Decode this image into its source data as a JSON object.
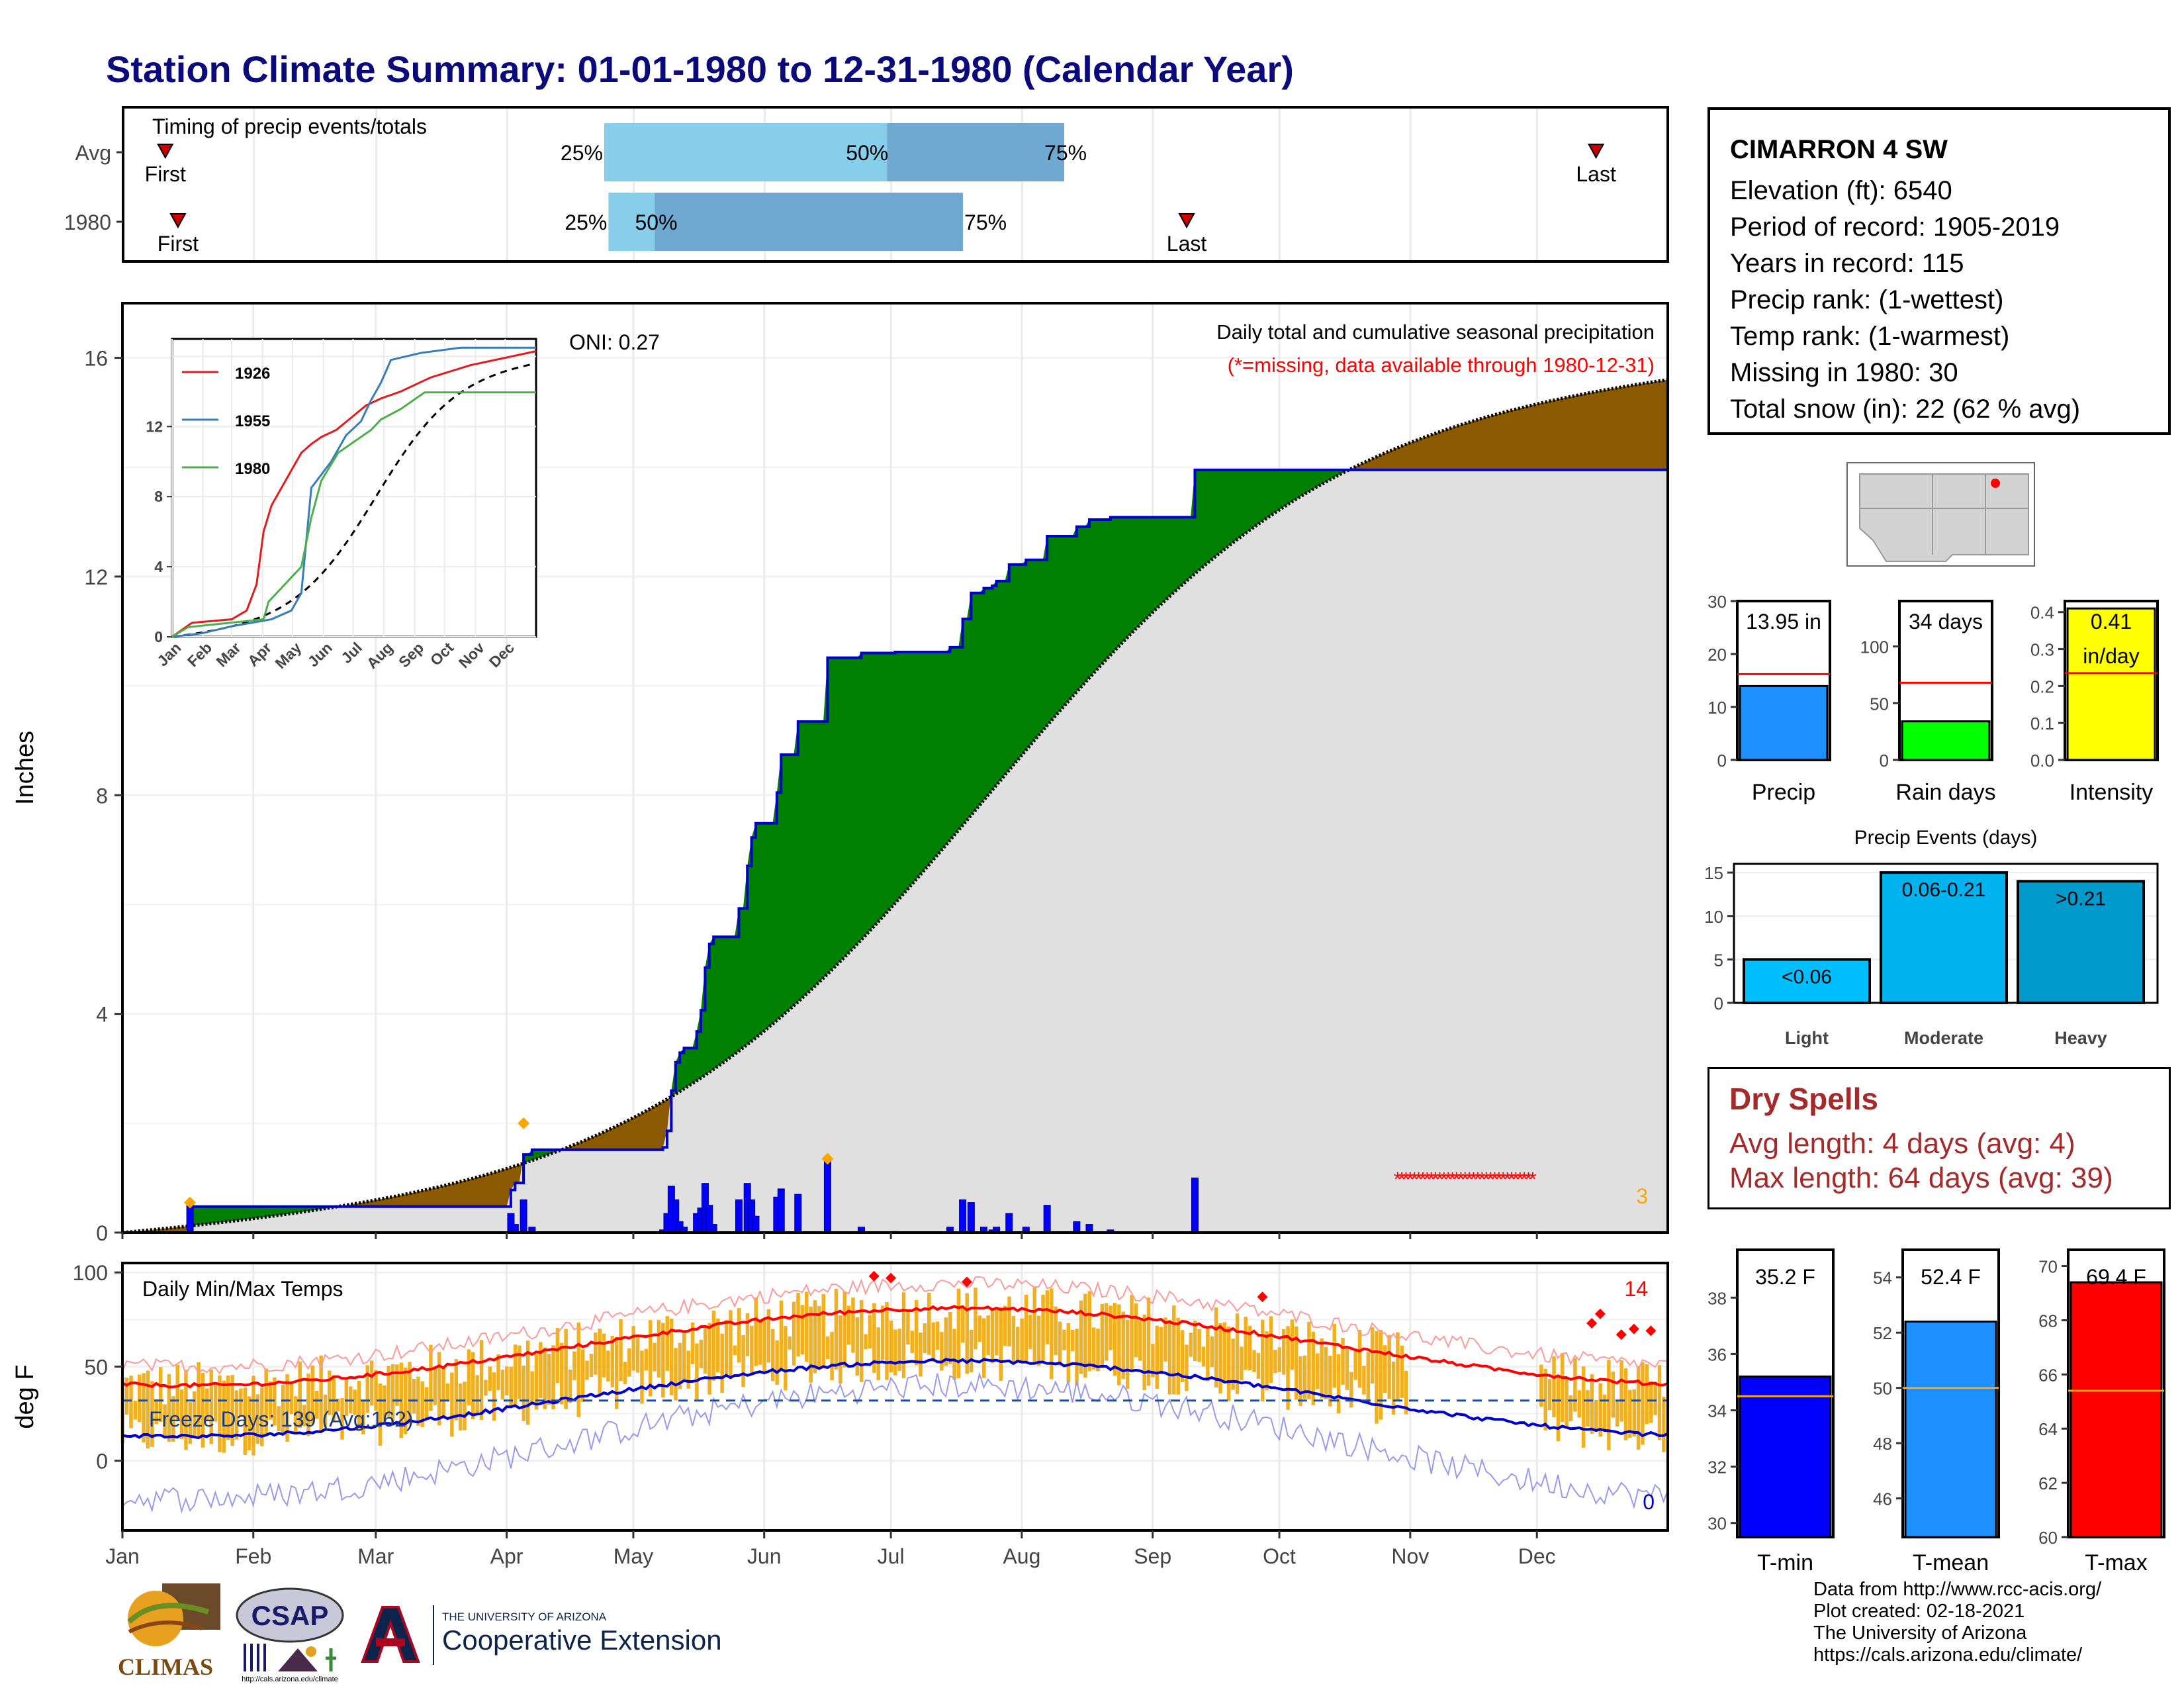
{
  "title": "Station Climate Summary: 01-01-1980 to 12-31-1980 (Calendar Year)",
  "colors": {
    "title": "#0a0a7a",
    "cum_avg_fill": "#e0e0e0",
    "above_avg": "#008000",
    "below_avg": "#8b5a00",
    "daily_precip": "#0000ff",
    "temp_bars": "#f0b020",
    "tmax_avg": "#ff0000",
    "tmin_avg": "#0000cc",
    "light_blue": "#87ceeb",
    "mid_blue": "#6fa8d0"
  },
  "timing": {
    "label": "Timing of precip events/totals",
    "rows": [
      {
        "name": "Avg",
        "first_label": "First",
        "last_label": "Last",
        "first_day": 10,
        "last_day": 349,
        "p25_day": 114,
        "p50_day": 181,
        "p75_day": 223,
        "p25": "25%",
        "p50": "50%",
        "p75": "75%"
      },
      {
        "name": "1980",
        "first_label": "First",
        "last_label": "Last",
        "first_day": 13,
        "last_day": 252,
        "p25_day": 115,
        "p50_day": 126,
        "p75_day": 199,
        "p25": "25%",
        "p50": "50%",
        "p75": "75%"
      }
    ]
  },
  "main_chart": {
    "ylabel": "Inches",
    "annotation": "Daily total and cumulative seasonal precipitation",
    "missing_note": "(*=missing, data available through 1980-12-31)",
    "oni": "ONI: 0.27",
    "missing_count": "3",
    "y_ticks": [
      "0",
      "4",
      "8",
      "12",
      "16"
    ],
    "ylim": [
      0,
      17
    ],
    "months": [
      "Jan",
      "Feb",
      "Mar",
      "Apr",
      "May",
      "Jun",
      "Jul",
      "Aug",
      "Sep",
      "Oct",
      "Nov",
      "Dec"
    ]
  },
  "inset": {
    "legend": [
      "1926",
      "1955",
      "1980"
    ],
    "y_ticks": [
      "0",
      "4",
      "8",
      "12"
    ],
    "months": [
      "Jan",
      "Feb",
      "Mar",
      "Apr",
      "May",
      "Jun",
      "Jul",
      "Aug",
      "Sep",
      "Oct",
      "Nov",
      "Dec"
    ]
  },
  "temp_chart": {
    "ylabel": "deg F",
    "label": "Daily Min/Max Temps",
    "freeze": "Freeze Days: 139 (Avg:162)",
    "count_high": "14",
    "count_low": "0",
    "y_ticks": [
      "0",
      "50",
      "100"
    ]
  },
  "station": {
    "name": "CIMARRON 4 SW",
    "lines": [
      "Elevation (ft): 6540",
      "Period of record: 1905-2019",
      "Years in record: 115",
      "Precip rank:  (1-wettest)",
      "Temp rank:  (1-warmest)",
      "Missing in 1980: 30",
      "Total snow (in): 22 (62 % avg)"
    ]
  },
  "summary_bars": [
    {
      "label": "Precip",
      "value": 13.95,
      "text": "13.95 in",
      "avg": 16.2,
      "max": 30,
      "ticks": [
        "0",
        "10",
        "20",
        "30"
      ],
      "color": "#1e90ff"
    },
    {
      "label": "Rain days",
      "value": 34,
      "text": "34 days",
      "avg": 68,
      "max": 140,
      "ticks": [
        "0",
        "50",
        "100"
      ],
      "color": "#00ff00"
    },
    {
      "label": "Intensity",
      "value": 0.41,
      "text": "0.41",
      "text2": "in/day",
      "avg": 0.235,
      "max": 0.43,
      "ticks": [
        "0.0",
        "0.1",
        "0.2",
        "0.3",
        "0.4"
      ],
      "color": "#ffff00"
    }
  ],
  "events": {
    "title": "Precip Events (days)",
    "ticks": [
      "0",
      "5",
      "10",
      "15"
    ],
    "bars": [
      {
        "name": "Light",
        "range": "<0.06",
        "value": 5,
        "color": "#00bfff"
      },
      {
        "name": "Moderate",
        "range": "0.06-0.21",
        "value": 15,
        "color": "#00b2ee"
      },
      {
        "name": "Heavy",
        "range": ">0.21",
        "value": 14,
        "color": "#009acd"
      }
    ]
  },
  "dry_spells": {
    "title": "Dry Spells",
    "avg": "Avg length: 4 days (avg: 4)",
    "max": "Max length: 64 days (avg: 39)"
  },
  "temp_bars": [
    {
      "label": "T-min",
      "value": 35.2,
      "text": "35.2 F",
      "avg": 34.5,
      "min": 29.5,
      "max": 39.7,
      "ticks": [
        "30",
        "32",
        "34",
        "36",
        "38"
      ],
      "color": "#0000ff"
    },
    {
      "label": "T-mean",
      "value": 52.4,
      "text": "52.4 F",
      "avg": 50.0,
      "min": 44.6,
      "max": 55.0,
      "ticks": [
        "46",
        "48",
        "50",
        "52",
        "54"
      ],
      "color": "#1e90ff"
    },
    {
      "label": "T-max",
      "value": 69.4,
      "text": "69.4 F",
      "avg": 65.4,
      "min": 60.0,
      "max": 70.6,
      "ticks": [
        "60",
        "62",
        "64",
        "66",
        "68",
        "70"
      ],
      "color": "#ff0000"
    }
  ],
  "logos": {
    "climas": "CLIMAS",
    "csap": "CSAP",
    "csap_url": "http://cals.arizona.edu/climate",
    "ua_small": "THE UNIVERSITY OF ARIZONA",
    "ua_big": "Cooperative Extension"
  },
  "credits": [
    "Data from http://www.rcc-acis.org/",
    "Plot created: 02-18-2021",
    "The University of Arizona",
    "https://cals.arizona.edu/climate/"
  ]
}
